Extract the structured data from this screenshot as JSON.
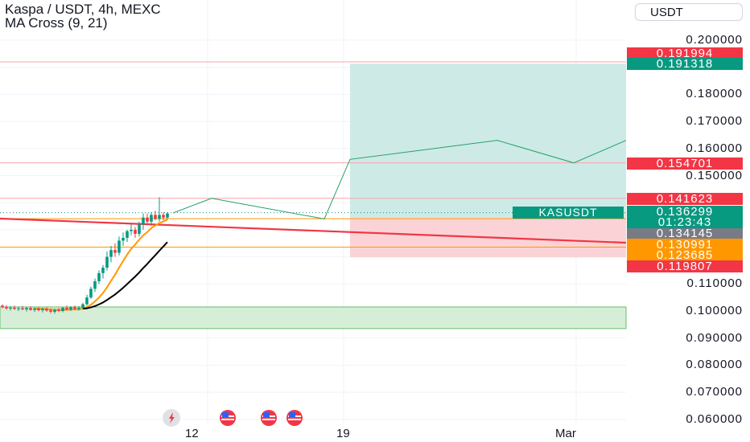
{
  "header": {
    "title": "Kaspa / USDT, 4h, MEXC",
    "indicator": "MA Cross (9, 21)"
  },
  "currency_button": "USDT",
  "symbol_label": "KASUSDT",
  "countdown": "01:23:43",
  "colors": {
    "up": "#089981",
    "down": "#f23645",
    "orange": "#ff9800",
    "grid": "#f0f3fa",
    "target_zone": "#cdeae6",
    "stop_zone": "#fbd3d6",
    "support_zone": "#d6eed7"
  },
  "event_icons": [
    "lightning-icon",
    "us-flag-icon",
    "us-flag-icon",
    "us-flag-icon"
  ],
  "chart_data": {
    "type": "candlestick",
    "price_axis": {
      "ticks": [
        "0.200000",
        "0.180000",
        "0.170000",
        "0.160000",
        "0.150000",
        "0.110000",
        "0.100000",
        "0.090000",
        "0.080000",
        "0.070000",
        "0.060000"
      ],
      "ylim": [
        0.06,
        0.2
      ]
    },
    "time_axis": {
      "ticks": [
        "12",
        "19",
        "Mar"
      ]
    },
    "price_labels": [
      {
        "value": "0.191994",
        "color": "#f23645"
      },
      {
        "value": "0.191318",
        "color": "#089981"
      },
      {
        "value": "0.154701",
        "color": "#f23645"
      },
      {
        "value": "0.141623",
        "color": "#f23645"
      },
      {
        "value": "0.136299",
        "color": "#089981"
      },
      {
        "value": "0.134145",
        "color": "#787b86"
      },
      {
        "value": "0.130991",
        "color": "#ff9800"
      },
      {
        "value": "0.123685",
        "color": "#ff9800"
      },
      {
        "value": "0.119807",
        "color": "#f23645"
      }
    ],
    "series": [
      {
        "name": "",
        "type": "ohlc",
        "values": [
          [
            0.102,
            0.1025,
            0.101,
            0.1015
          ],
          [
            0.1015,
            0.1022,
            0.1005,
            0.101
          ],
          [
            0.101,
            0.1018,
            0.1002,
            0.1012
          ],
          [
            0.1012,
            0.102,
            0.1004,
            0.1008
          ],
          [
            0.1008,
            0.1016,
            0.1,
            0.101
          ],
          [
            0.101,
            0.1019,
            0.1003,
            0.1006
          ],
          [
            0.1006,
            0.1015,
            0.0998,
            0.1011
          ],
          [
            0.1011,
            0.1017,
            0.1001,
            0.1004
          ],
          [
            0.1004,
            0.1013,
            0.0996,
            0.1009
          ],
          [
            0.1009,
            0.1016,
            0.0999,
            0.1003
          ],
          [
            0.1003,
            0.1012,
            0.0995,
            0.1008
          ],
          [
            0.1008,
            0.1014,
            0.0997,
            0.1002
          ],
          [
            0.1002,
            0.101,
            0.0992,
            0.0997
          ],
          [
            0.0997,
            0.1008,
            0.099,
            0.1004
          ],
          [
            0.1004,
            0.1012,
            0.0996,
            0.1
          ],
          [
            0.1,
            0.1015,
            0.0995,
            0.1012
          ],
          [
            0.1012,
            0.102,
            0.1002,
            0.1006
          ],
          [
            0.1006,
            0.1017,
            0.1,
            0.1014
          ],
          [
            0.1014,
            0.102,
            0.1004,
            0.1008
          ],
          [
            0.1008,
            0.1018,
            0.1002,
            0.1012
          ],
          [
            0.1012,
            0.103,
            0.1008,
            0.1025
          ],
          [
            0.1025,
            0.106,
            0.102,
            0.105
          ],
          [
            0.105,
            0.109,
            0.1045,
            0.1082
          ],
          [
            0.1082,
            0.112,
            0.107,
            0.111
          ],
          [
            0.111,
            0.115,
            0.11,
            0.114
          ],
          [
            0.114,
            0.117,
            0.112,
            0.116
          ],
          [
            0.116,
            0.122,
            0.115,
            0.12
          ],
          [
            0.12,
            0.124,
            0.118,
            0.1225
          ],
          [
            0.1225,
            0.125,
            0.12,
            0.1215
          ],
          [
            0.1215,
            0.1275,
            0.1205,
            0.126
          ],
          [
            0.126,
            0.129,
            0.124,
            0.127
          ],
          [
            0.127,
            0.13,
            0.1255,
            0.1295
          ],
          [
            0.1295,
            0.132,
            0.128,
            0.13
          ],
          [
            0.13,
            0.131,
            0.127,
            0.1285
          ],
          [
            0.1285,
            0.133,
            0.1275,
            0.132
          ],
          [
            0.132,
            0.136,
            0.13,
            0.1345
          ],
          [
            0.1345,
            0.136,
            0.132,
            0.133
          ],
          [
            0.133,
            0.1365,
            0.1315,
            0.1355
          ],
          [
            0.1355,
            0.137,
            0.1335,
            0.134
          ],
          [
            0.134,
            0.142,
            0.133,
            0.1355
          ],
          [
            0.1355,
            0.1365,
            0.1335,
            0.1345
          ],
          [
            0.1345,
            0.1365,
            0.1338,
            0.136
          ]
        ]
      },
      {
        "name": "",
        "type": "ma",
        "period": 9
      },
      {
        "name": "",
        "type": "ma",
        "period": 21
      }
    ],
    "drawings": {
      "target_zone": [
        0.1346,
        0.1913
      ],
      "stop_zone": [
        0.1198,
        0.1346
      ],
      "support_zone": [
        0.0935,
        0.1015
      ],
      "horizontal_lines": [
        0.192,
        0.1547,
        0.1416,
        0.1341,
        0.1236
      ],
      "projection_path": [
        0.1362,
        0.1416,
        0.134,
        0.156,
        0.163,
        0.1547,
        0.163
      ]
    }
  }
}
